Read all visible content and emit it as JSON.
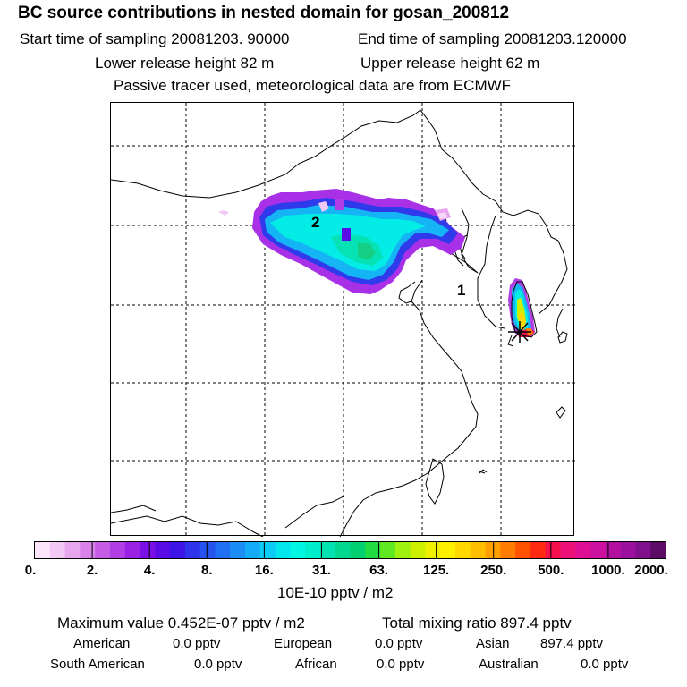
{
  "header": {
    "title": "BC  source contributions in nested domain for gosan_200812",
    "start_time": "Start time of sampling 20081203. 90000",
    "end_time": "End time of sampling 20081203.120000",
    "lower_release": "Lower release height   82 m",
    "upper_release": "Upper release height   62 m",
    "tracer_note": "Passive tracer used, meteorological data are from ECMWF"
  },
  "map": {
    "labels": {
      "one": "1",
      "two": "2"
    }
  },
  "colorbar": {
    "ticks": [
      "0.",
      "2.",
      "4.",
      "8.",
      "16.",
      "31.",
      "63.",
      "125.",
      "250.",
      "500.",
      "1000.",
      "2000."
    ],
    "unit": "10E-10 pptv / m2",
    "colors": [
      "#fbe6fb",
      "#f2c8f4",
      "#e8a6ee",
      "#d882ea",
      "#c75de6",
      "#b13ee4",
      "#9a22e4",
      "#7b10e6",
      "#5a0ce6",
      "#3c14e6",
      "#2f34ea",
      "#2652ee",
      "#1f70f2",
      "#1a8ef6",
      "#14acf8",
      "#0ccaf6",
      "#04e6ee",
      "#02f6e2",
      "#00eecc",
      "#00e2b0",
      "#00d890",
      "#00d070",
      "#20dc40",
      "#60e820",
      "#a0f010",
      "#ccf000",
      "#eef000",
      "#fff000",
      "#ffd800",
      "#ffbe00",
      "#ffa000",
      "#ff7c00",
      "#ff5200",
      "#ff2a10",
      "#f4104c",
      "#ec1078",
      "#e01094",
      "#cc10a0",
      "#b410a0",
      "#9c10a0",
      "#80108c",
      "#5c0c64"
    ]
  },
  "stats": {
    "max_value": "Maximum value  0.452E-07 pptv / m2",
    "total_mixing": "Total mixing ratio      897.4 pptv",
    "regions": [
      {
        "name": "American",
        "value": "0.0 pptv"
      },
      {
        "name": "European",
        "value": "0.0 pptv"
      },
      {
        "name": "Asian",
        "value": "897.4 pptv"
      },
      {
        "name": "South American",
        "value": "0.0 pptv"
      },
      {
        "name": "African",
        "value": "0.0 pptv"
      },
      {
        "name": "Australian",
        "value": "0.0 pptv"
      }
    ]
  }
}
